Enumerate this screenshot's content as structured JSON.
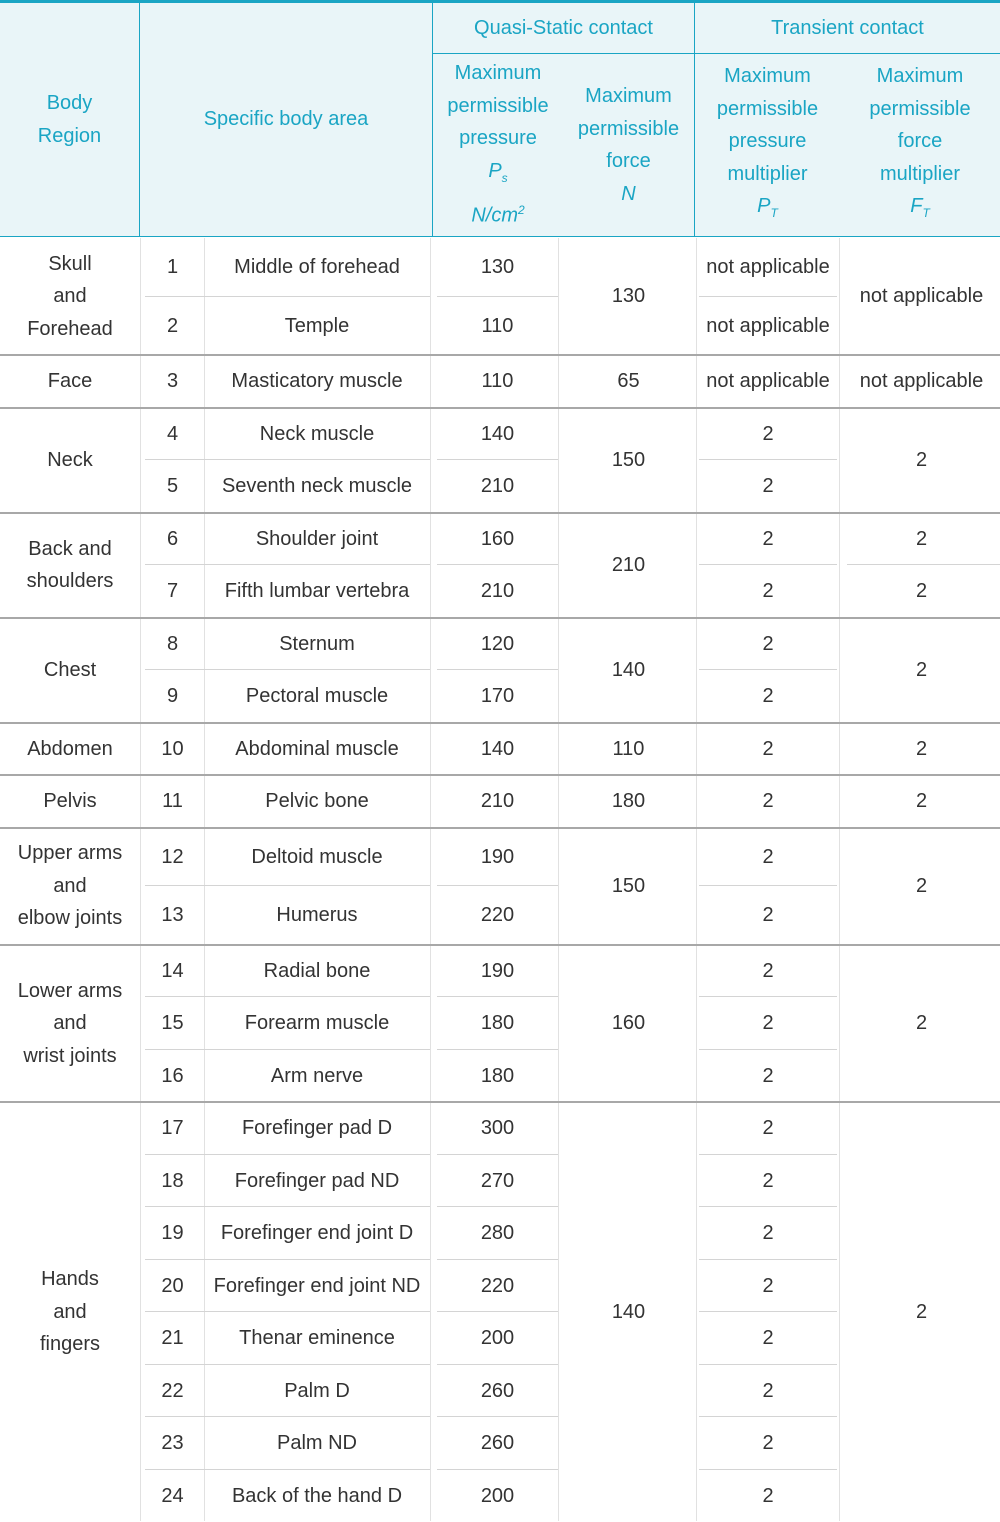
{
  "header": {
    "body_region": "Body Region",
    "specific_area": "Specific body area",
    "quasi_static": "Quasi-Static contact",
    "transient": "Transient contact",
    "qs_pressure": {
      "l1": "Maximum",
      "l2": "permissible",
      "l3": "pressure",
      "sym": "P",
      "sub": "s",
      "unit_a": "N/cm",
      "unit_sup": "2"
    },
    "qs_force": {
      "l1": "Maximum",
      "l2": "permissible",
      "l3": "force",
      "unit": "N"
    },
    "tr_pressure": {
      "l1": "Maximum",
      "l2": "permissible",
      "l3": "pressure",
      "l4": "multiplier",
      "sym": "P",
      "sub": "T"
    },
    "tr_force": {
      "l1": "Maximum",
      "l2": "permissible",
      "l3": "force",
      "l4": "multiplier",
      "sym": "F",
      "sub": "T"
    }
  },
  "table": {
    "groups": [
      {
        "region_lines": [
          "Skull",
          "and",
          "Forehead"
        ],
        "force": "130",
        "force_multiplier": "not applicable",
        "rows": [
          {
            "no": "1",
            "area": "Middle of forehead",
            "pressure": "130",
            "pressure_multiplier": "not applicable"
          },
          {
            "no": "2",
            "area": "Temple",
            "pressure": "110",
            "pressure_multiplier": "not applicable"
          }
        ]
      },
      {
        "region_lines": [
          "Face"
        ],
        "force": "65",
        "force_multiplier": "not applicable",
        "rows": [
          {
            "no": "3",
            "area": "Masticatory muscle",
            "pressure": "110",
            "pressure_multiplier": "not applicable"
          }
        ]
      },
      {
        "region_lines": [
          "Neck"
        ],
        "force": "150",
        "force_multiplier": "2",
        "rows": [
          {
            "no": "4",
            "area": "Neck muscle",
            "pressure": "140",
            "pressure_multiplier": "2"
          },
          {
            "no": "5",
            "area": "Seventh neck muscle",
            "pressure": "210",
            "pressure_multiplier": "2"
          }
        ]
      },
      {
        "region_lines": [
          "Back and",
          "shoulders"
        ],
        "force": "210",
        "force_multiplier": "2",
        "force_multiplier_per_row": [
          "2",
          "2"
        ],
        "rows": [
          {
            "no": "6",
            "area": "Shoulder joint",
            "pressure": "160",
            "pressure_multiplier": "2"
          },
          {
            "no": "7",
            "area": "Fifth lumbar vertebra",
            "pressure": "210",
            "pressure_multiplier": "2"
          }
        ]
      },
      {
        "region_lines": [
          "Chest"
        ],
        "force": "140",
        "force_multiplier": "2",
        "rows": [
          {
            "no": "8",
            "area": "Sternum",
            "pressure": "120",
            "pressure_multiplier": "2"
          },
          {
            "no": "9",
            "area": "Pectoral muscle",
            "pressure": "170",
            "pressure_multiplier": "2"
          }
        ]
      },
      {
        "region_lines": [
          "Abdomen"
        ],
        "force": "110",
        "force_multiplier": "2",
        "rows": [
          {
            "no": "10",
            "area": "Abdominal muscle",
            "pressure": "140",
            "pressure_multiplier": "2"
          }
        ]
      },
      {
        "region_lines": [
          "Pelvis"
        ],
        "force": "180",
        "force_multiplier": "2",
        "rows": [
          {
            "no": "11",
            "area": "Pelvic bone",
            "pressure": "210",
            "pressure_multiplier": "2"
          }
        ]
      },
      {
        "region_lines": [
          "Upper arms",
          "and",
          "elbow joints"
        ],
        "force": "150",
        "force_multiplier": "2",
        "rows": [
          {
            "no": "12",
            "area": "Deltoid muscle",
            "pressure": "190",
            "pressure_multiplier": "2"
          },
          {
            "no": "13",
            "area": "Humerus",
            "pressure": "220",
            "pressure_multiplier": "2"
          }
        ]
      },
      {
        "region_lines": [
          "Lower arms",
          "and",
          "wrist joints"
        ],
        "force": "160",
        "force_multiplier": "2",
        "rows": [
          {
            "no": "14",
            "area": "Radial bone",
            "pressure": "190",
            "pressure_multiplier": "2"
          },
          {
            "no": "15",
            "area": "Forearm muscle",
            "pressure": "180",
            "pressure_multiplier": "2"
          },
          {
            "no": "16",
            "area": "Arm nerve",
            "pressure": "180",
            "pressure_multiplier": "2"
          }
        ]
      },
      {
        "region_lines": [
          "Hands",
          "and",
          "fingers"
        ],
        "force": "140",
        "force_multiplier": "2",
        "rows": [
          {
            "no": "17",
            "area": "Forefinger pad D",
            "pressure": "300",
            "pressure_multiplier": "2"
          },
          {
            "no": "18",
            "area": "Forefinger pad ND",
            "pressure": "270",
            "pressure_multiplier": "2"
          },
          {
            "no": "19",
            "area": "Forefinger end joint D",
            "pressure": "280",
            "pressure_multiplier": "2"
          },
          {
            "no": "20",
            "area": "Forefinger end joint ND",
            "pressure": "220",
            "pressure_multiplier": "2"
          },
          {
            "no": "21",
            "area": "Thenar eminence",
            "pressure": "200",
            "pressure_multiplier": "2"
          },
          {
            "no": "22",
            "area": "Palm D",
            "pressure": "260",
            "pressure_multiplier": "2"
          },
          {
            "no": "23",
            "area": "Palm ND",
            "pressure": "260",
            "pressure_multiplier": "2"
          },
          {
            "no": "24",
            "area": "Back of the hand D",
            "pressure": "200",
            "pressure_multiplier": "2"
          }
        ]
      }
    ]
  }
}
